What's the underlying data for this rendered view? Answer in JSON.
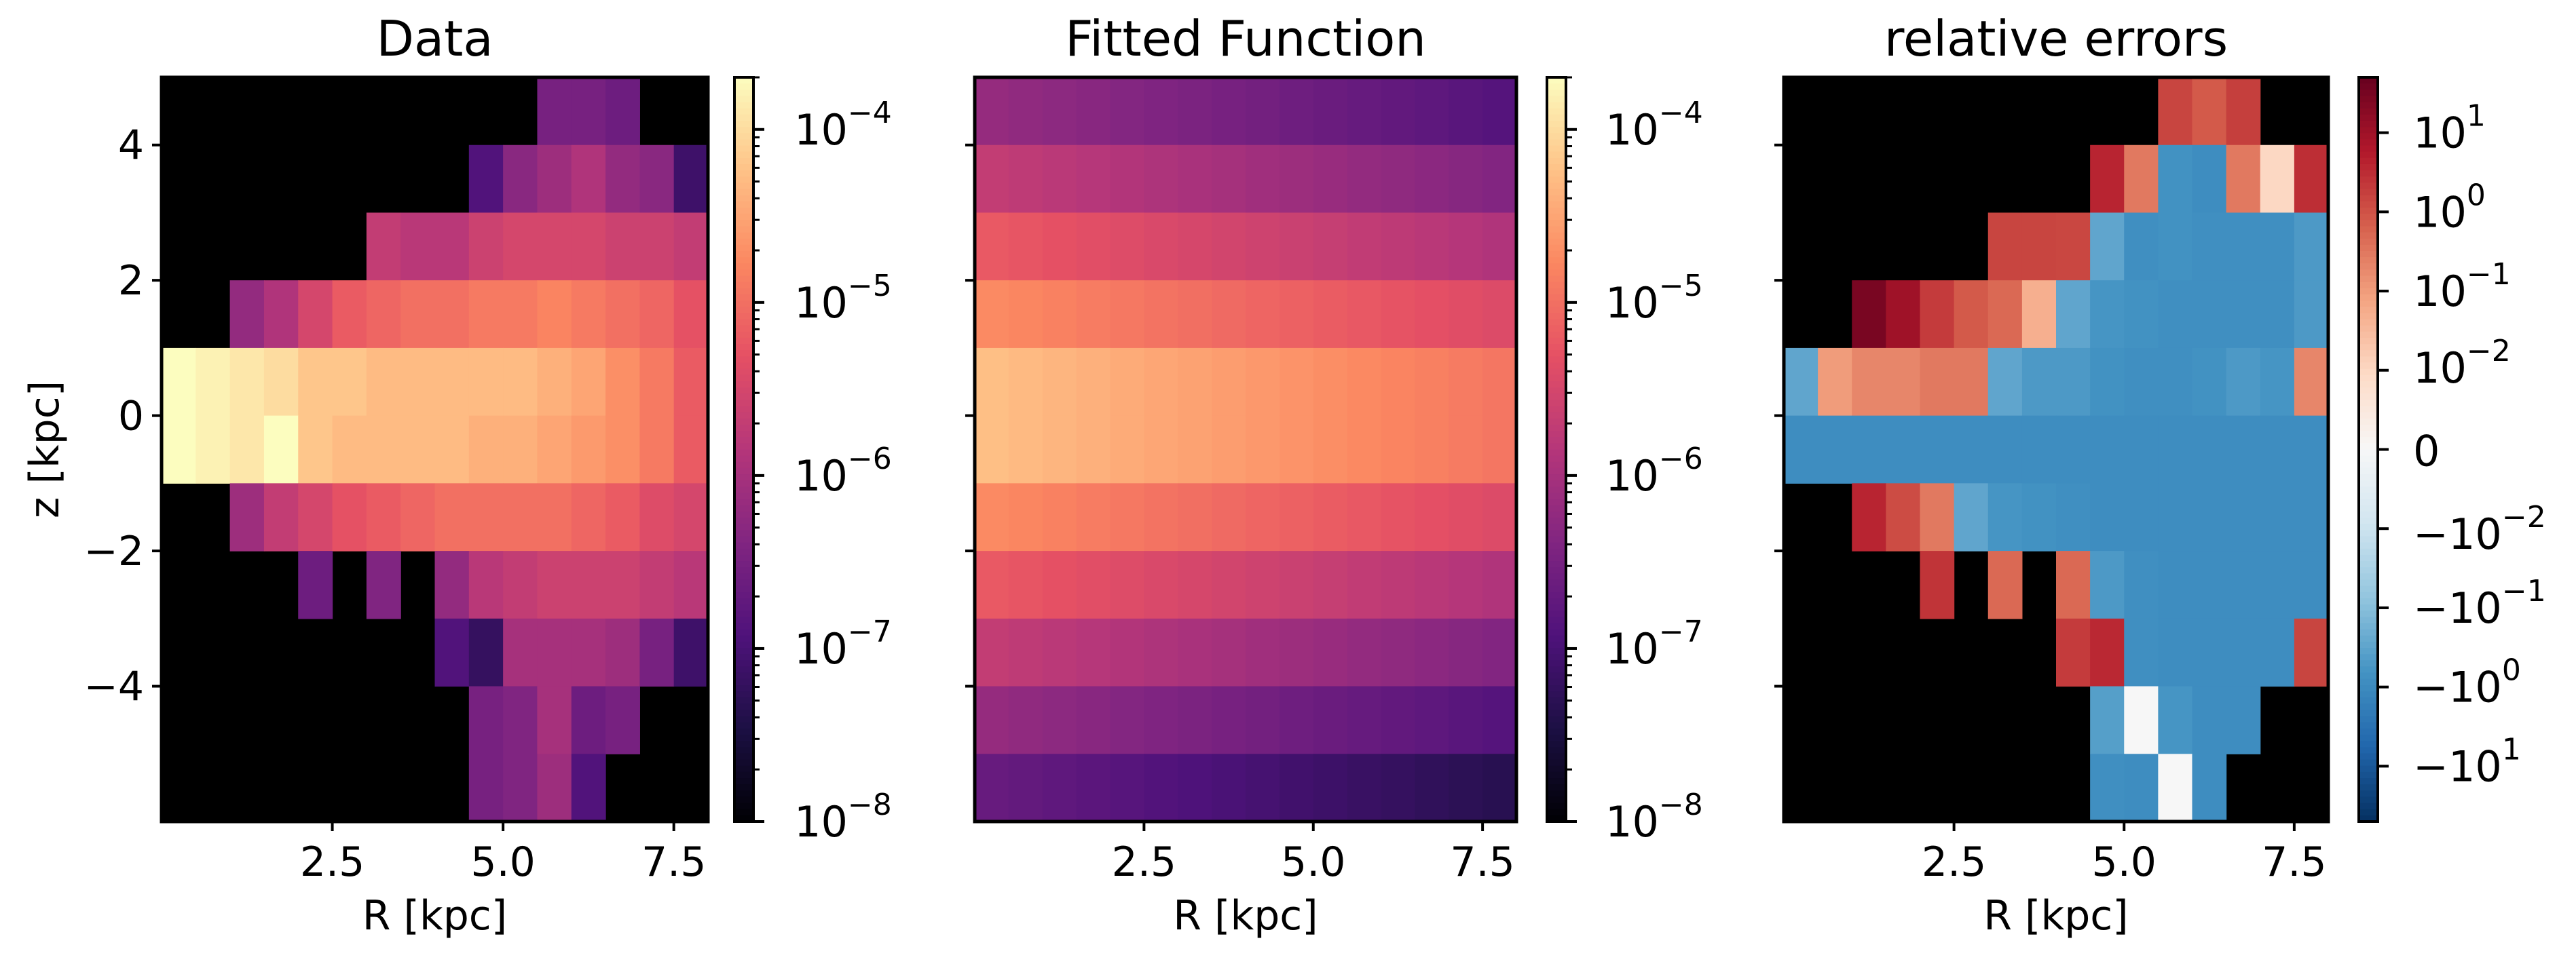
{
  "chart_data": [
    {
      "type": "heatmap",
      "title": "Data",
      "xlabel": "R [kpc]",
      "ylabel": "z [kpc]",
      "xlim": [
        0,
        8
      ],
      "ylim": [
        -6,
        5
      ],
      "x_ticks": [
        2.5,
        5.0,
        7.5
      ],
      "x_tick_labels": [
        "2.5",
        "5.0",
        "7.5"
      ],
      "y_ticks": [
        4,
        2,
        0,
        -2,
        -4
      ],
      "y_tick_labels": [
        "4",
        "2",
        "0",
        "−2",
        "−4"
      ],
      "colormap": "magma",
      "colorbar_scale": "log",
      "colorbar_range": [
        1e-08,
        0.0002
      ],
      "colorbar_ticks": [
        {
          "value": 0.0001,
          "base": "10",
          "exp": "−4"
        },
        {
          "value": 1e-05,
          "base": "10",
          "exp": "−5"
        },
        {
          "value": 1e-06,
          "base": "10",
          "exp": "−6"
        },
        {
          "value": 1e-07,
          "base": "10",
          "exp": "−7"
        },
        {
          "value": 1e-08,
          "base": "10",
          "exp": "−8"
        }
      ],
      "r_bins": [
        0.25,
        0.75,
        1.25,
        1.75,
        2.25,
        2.75,
        3.25,
        3.75,
        4.25,
        4.75,
        5.25,
        5.75,
        6.25,
        6.75,
        7.25,
        7.75
      ],
      "z_bins": [
        4.5,
        3.5,
        2.5,
        1.5,
        0.5,
        -0.5,
        -1.5,
        -2.5,
        -3.5,
        -4.5,
        -5.5
      ],
      "log10_values": [
        [
          null,
          null,
          null,
          null,
          null,
          null,
          null,
          null,
          null,
          null,
          null,
          -6.5,
          -6.5,
          -6.6,
          null,
          null
        ],
        [
          null,
          null,
          null,
          null,
          null,
          null,
          null,
          null,
          null,
          -6.9,
          -6.3,
          -6.1,
          -5.9,
          -6.2,
          -6.3,
          -7.1
        ],
        [
          null,
          null,
          null,
          null,
          null,
          null,
          -5.7,
          -5.8,
          -5.8,
          -5.6,
          -5.5,
          -5.5,
          -5.5,
          -5.6,
          -5.6,
          -5.7
        ],
        [
          null,
          null,
          -6.2,
          -5.9,
          -5.5,
          -5.2,
          -5.1,
          -5.0,
          -5.0,
          -4.9,
          -4.9,
          -4.8,
          -4.9,
          -5.0,
          -5.1,
          -5.3
        ],
        [
          -3.6,
          -3.8,
          -3.9,
          -4.0,
          -4.2,
          -4.2,
          -4.3,
          -4.3,
          -4.3,
          -4.3,
          -4.3,
          -4.4,
          -4.5,
          -4.7,
          -4.9,
          -5.2
        ],
        [
          -3.6,
          -3.8,
          -3.9,
          -3.7,
          -4.2,
          -4.3,
          -4.3,
          -4.3,
          -4.3,
          -4.4,
          -4.4,
          -4.5,
          -4.6,
          -4.7,
          -4.9,
          -5.2
        ],
        [
          null,
          null,
          -6.1,
          -5.7,
          -5.5,
          -5.3,
          -5.2,
          -5.1,
          -5.0,
          -5.0,
          -5.0,
          -5.0,
          -5.1,
          -5.2,
          -5.4,
          -5.5
        ],
        [
          null,
          null,
          null,
          null,
          -6.6,
          null,
          -6.4,
          null,
          -6.2,
          -5.8,
          -5.7,
          -5.6,
          -5.6,
          -5.6,
          -5.7,
          -5.8
        ],
        [
          null,
          null,
          null,
          null,
          null,
          null,
          null,
          null,
          -6.9,
          -7.2,
          -6.0,
          -6.0,
          -6.0,
          -6.1,
          -6.5,
          -7.1
        ],
        [
          null,
          null,
          null,
          null,
          null,
          null,
          null,
          null,
          null,
          -6.5,
          -6.4,
          -6.0,
          -6.6,
          -6.5,
          null,
          null
        ],
        [
          null,
          null,
          null,
          null,
          null,
          null,
          null,
          null,
          null,
          -6.5,
          -6.4,
          -6.1,
          -6.9,
          null,
          null,
          null
        ]
      ]
    },
    {
      "type": "heatmap",
      "title": "Fitted Function",
      "xlabel": "R [kpc]",
      "ylabel": "",
      "xlim": [
        0,
        8
      ],
      "ylim": [
        -6,
        5
      ],
      "x_ticks": [
        2.5,
        5.0,
        7.5
      ],
      "x_tick_labels": [
        "2.5",
        "5.0",
        "7.5"
      ],
      "colormap": "magma",
      "colorbar_scale": "log",
      "colorbar_range": [
        1e-08,
        0.0002
      ],
      "colorbar_ticks": [
        {
          "value": 0.0001,
          "base": "10",
          "exp": "−4"
        },
        {
          "value": 1e-05,
          "base": "10",
          "exp": "−5"
        },
        {
          "value": 1e-06,
          "base": "10",
          "exp": "−6"
        },
        {
          "value": 1e-07,
          "base": "10",
          "exp": "−7"
        },
        {
          "value": 1e-08,
          "base": "10",
          "exp": "−8"
        }
      ],
      "r_bins": [
        0.25,
        0.75,
        1.25,
        1.75,
        2.25,
        2.75,
        3.25,
        3.75,
        4.25,
        4.75,
        5.25,
        5.75,
        6.25,
        6.75,
        7.25,
        7.75
      ],
      "z_bins": [
        4.5,
        3.5,
        2.5,
        1.5,
        0.5,
        -0.5,
        -1.5,
        -2.5,
        -3.5,
        -4.5,
        -5.5
      ],
      "model": {
        "peak_log10": -4.0,
        "radial_slope_per_kpc": -0.09,
        "vertical_slope_per_kpc": -0.48
      }
    },
    {
      "type": "heatmap",
      "title": "relative errors",
      "xlabel": "R [kpc]",
      "ylabel": "",
      "xlim": [
        0,
        8
      ],
      "ylim": [
        -6,
        5
      ],
      "x_ticks": [
        2.5,
        5.0,
        7.5
      ],
      "x_tick_labels": [
        "2.5",
        "5.0",
        "7.5"
      ],
      "colormap": "RdBu_r",
      "colorbar_scale": "symlog",
      "colorbar_range": [
        -50,
        50
      ],
      "colorbar_ticks": [
        {
          "value": 10,
          "base": "10",
          "exp": "1"
        },
        {
          "value": 1,
          "base": "10",
          "exp": "0"
        },
        {
          "value": 0.1,
          "base": "10",
          "exp": "−1"
        },
        {
          "value": 0.01,
          "base": "10",
          "exp": "−2"
        },
        {
          "value": 0,
          "base": "0",
          "exp": ""
        },
        {
          "value": -0.01,
          "base": "−10",
          "exp": "−2"
        },
        {
          "value": -0.1,
          "base": "−10",
          "exp": "−1"
        },
        {
          "value": -1,
          "base": "−10",
          "exp": "0"
        },
        {
          "value": -10,
          "base": "−10",
          "exp": "1"
        }
      ],
      "r_bins": [
        0.25,
        0.75,
        1.25,
        1.75,
        2.25,
        2.75,
        3.25,
        3.75,
        4.25,
        4.75,
        5.25,
        5.75,
        6.25,
        6.75,
        7.25,
        7.75
      ],
      "z_bins": [
        4.5,
        3.5,
        2.5,
        1.5,
        0.5,
        -0.5,
        -1.5,
        -2.5,
        -3.5,
        -4.5,
        -5.5
      ],
      "values": [
        [
          null,
          null,
          null,
          null,
          null,
          null,
          null,
          null,
          null,
          null,
          null,
          1.5,
          0.8,
          1.8,
          null,
          null
        ],
        [
          null,
          null,
          null,
          null,
          null,
          null,
          null,
          null,
          null,
          4.0,
          0.3,
          -0.7,
          -0.9,
          0.3,
          0.01,
          3.0
        ],
        [
          null,
          null,
          null,
          null,
          null,
          null,
          1.5,
          1.5,
          1.4,
          -0.3,
          -0.8,
          -0.7,
          -0.8,
          -0.8,
          -0.8,
          -0.5
        ],
        [
          null,
          null,
          30,
          10,
          2.0,
          0.8,
          0.5,
          0.05,
          -0.3,
          -0.6,
          -0.7,
          -0.8,
          -0.8,
          -0.8,
          -0.8,
          -0.5
        ],
        [
          -0.3,
          0.1,
          0.2,
          0.2,
          0.3,
          0.3,
          -0.3,
          -0.5,
          -0.5,
          -0.7,
          -0.8,
          -0.8,
          -0.7,
          -0.5,
          -0.6,
          0.2
        ],
        [
          -0.9,
          -0.9,
          -0.9,
          -0.9,
          -0.9,
          -0.9,
          -0.9,
          -0.9,
          -0.9,
          -0.9,
          -0.9,
          -0.9,
          -0.9,
          -0.9,
          -0.9,
          -0.9
        ],
        [
          null,
          null,
          4.0,
          1.2,
          0.3,
          -0.3,
          -0.6,
          -0.7,
          -0.8,
          -0.9,
          -0.9,
          -0.9,
          -0.9,
          -0.9,
          -0.9,
          -0.9
        ],
        [
          null,
          null,
          null,
          null,
          2.5,
          null,
          0.5,
          null,
          0.5,
          -0.5,
          -0.8,
          -0.9,
          -0.9,
          -0.9,
          -0.9,
          -0.9
        ],
        [
          null,
          null,
          null,
          null,
          null,
          null,
          null,
          null,
          2.0,
          3.5,
          -0.8,
          -0.9,
          -0.9,
          -0.9,
          -0.9,
          1.5
        ],
        [
          null,
          null,
          null,
          null,
          null,
          null,
          null,
          null,
          null,
          -0.4,
          0.0,
          -0.6,
          -0.9,
          -0.9,
          null,
          null
        ],
        [
          null,
          null,
          null,
          null,
          null,
          null,
          null,
          null,
          null,
          -0.8,
          -0.9,
          0.0,
          -0.9,
          null,
          null,
          null
        ]
      ]
    }
  ],
  "colors": {
    "empty_bin": "#000000",
    "frame": "#000000",
    "background": "#ffffff"
  }
}
